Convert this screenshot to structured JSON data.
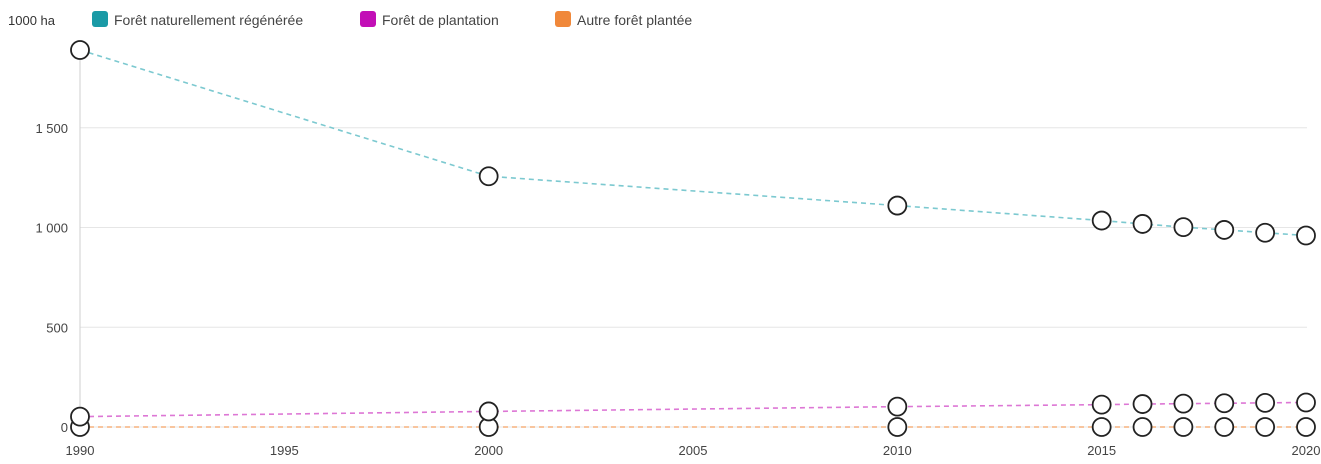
{
  "chart_data": {
    "type": "line",
    "unit_label": "1000 ha",
    "x": [
      1990,
      2000,
      2010,
      2015,
      2016,
      2017,
      2018,
      2019,
      2020
    ],
    "x_ticks": [
      1990,
      1995,
      2000,
      2005,
      2010,
      2015,
      2020
    ],
    "y_ticks": [
      0,
      500,
      1000,
      1500
    ],
    "y_tick_labels": [
      "0",
      "500",
      "1 000",
      "1 500"
    ],
    "ylim": [
      0,
      1900
    ],
    "xlim": [
      1990,
      2020
    ],
    "grid": "horizontal",
    "legend_position": "top-left",
    "series": [
      {
        "name": "Forêt naturellement régénérée",
        "color": "#1a9aa6",
        "line_color": "#7cc9d0",
        "values": [
          1890,
          1257,
          1110,
          1035,
          1018,
          1002,
          988,
          974,
          960
        ]
      },
      {
        "name": "Forêt de plantation",
        "color": "#c20fb6",
        "line_color": "#dd77d5",
        "values": [
          52,
          78,
          102,
          112,
          115,
          117,
          119,
          121,
          123
        ]
      },
      {
        "name": "Autre forêt plantée",
        "color": "#f0883a",
        "line_color": "#f5b27e",
        "values": [
          0,
          0,
          0,
          0,
          0,
          0,
          0,
          0,
          0
        ]
      }
    ]
  }
}
